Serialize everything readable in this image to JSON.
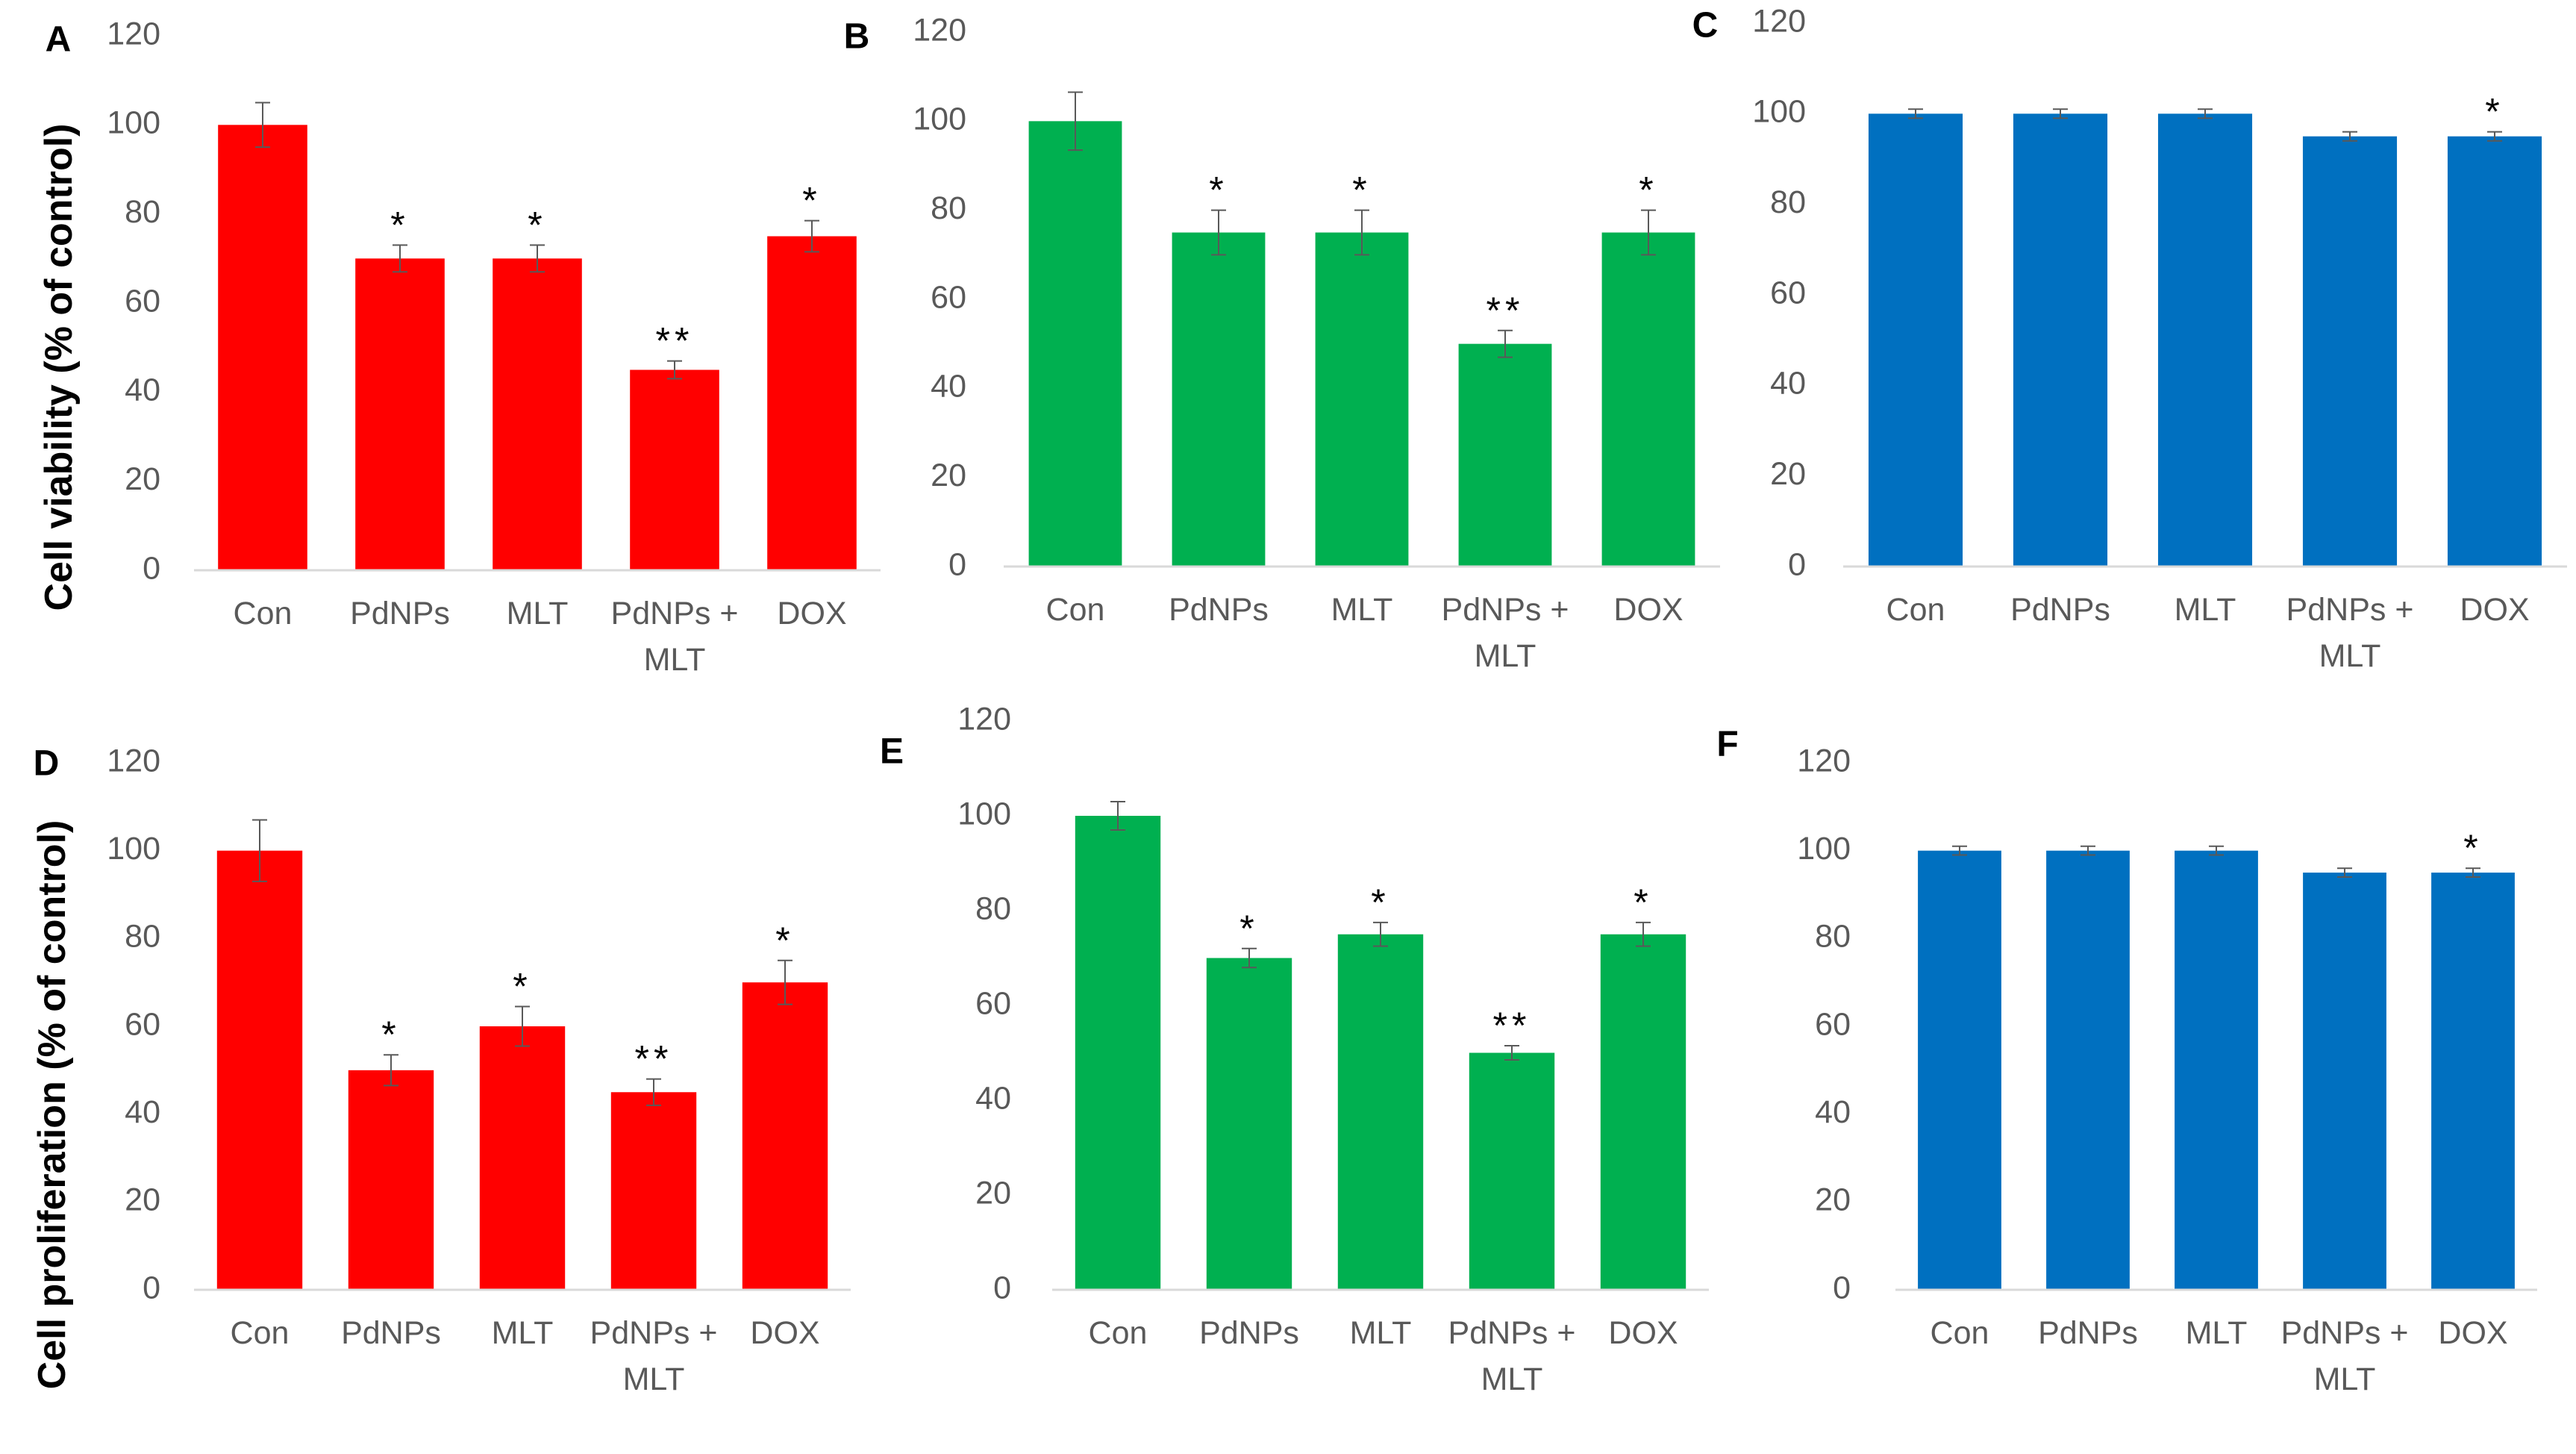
{
  "colors": {
    "red": "#ff0000",
    "green": "#00b050",
    "blue": "#0070c0",
    "axis": "#d9d9d9",
    "text": "#595959"
  },
  "y_axis_titles": {
    "top": "Cell viability (% of control)",
    "bottom": "Cell proliferation (% of control)"
  },
  "chart_data": [
    {
      "panel": "A",
      "type": "bar",
      "color": "red",
      "categories": [
        "Con",
        "PdNPs",
        "MLT",
        "PdNPs + MLT",
        "DOX"
      ],
      "values": [
        100,
        70,
        70,
        45,
        75
      ],
      "errors": [
        5,
        3,
        3,
        2,
        3.5
      ],
      "significance": [
        "",
        "*",
        "*",
        "**",
        "*"
      ],
      "ylim": [
        0,
        120
      ],
      "yticks": [
        0,
        20,
        40,
        60,
        80,
        100,
        120
      ],
      "ylabel": "Cell viability (% of control)"
    },
    {
      "panel": "B",
      "type": "bar",
      "color": "green",
      "categories": [
        "Con",
        "PdNPs",
        "MLT",
        "PdNPs + MLT",
        "DOX"
      ],
      "values": [
        100,
        75,
        75,
        50,
        75
      ],
      "errors": [
        6.5,
        5,
        5,
        3,
        5
      ],
      "significance": [
        "",
        "*",
        "*",
        "**",
        "*"
      ],
      "ylim": [
        0,
        120
      ],
      "yticks": [
        0,
        20,
        40,
        60,
        80,
        100,
        120
      ]
    },
    {
      "panel": "C",
      "type": "bar",
      "color": "blue",
      "categories": [
        "Con",
        "PdNPs",
        "MLT",
        "PdNPs + MLT",
        "DOX"
      ],
      "values": [
        100,
        100,
        100,
        95,
        95
      ],
      "errors": [
        1,
        1,
        1,
        1,
        1
      ],
      "significance": [
        "",
        "",
        "",
        "",
        "*"
      ],
      "ylim": [
        0,
        120
      ],
      "yticks": [
        0,
        20,
        40,
        60,
        80,
        100,
        120
      ]
    },
    {
      "panel": "D",
      "type": "bar",
      "color": "red",
      "categories": [
        "Con",
        "PdNPs",
        "MLT",
        "PdNPs + MLT",
        "DOX"
      ],
      "values": [
        100,
        50,
        60,
        45,
        70
      ],
      "errors": [
        7,
        3.5,
        4.5,
        3,
        5
      ],
      "significance": [
        "",
        "*",
        "*",
        "**",
        "*"
      ],
      "ylim": [
        0,
        120
      ],
      "yticks": [
        0,
        20,
        40,
        60,
        80,
        100,
        120
      ],
      "ylabel": "Cell proliferation (% of control)"
    },
    {
      "panel": "E",
      "type": "bar",
      "color": "green",
      "categories": [
        "Con",
        "PdNPs",
        "MLT",
        "PdNPs + MLT",
        "DOX"
      ],
      "values": [
        100,
        70,
        75,
        50,
        75
      ],
      "errors": [
        3,
        2,
        2.5,
        1.5,
        2.5
      ],
      "significance": [
        "",
        "*",
        "*",
        "**",
        "*"
      ],
      "ylim": [
        0,
        120
      ],
      "yticks": [
        0,
        20,
        40,
        60,
        80,
        100,
        120
      ]
    },
    {
      "panel": "F",
      "type": "bar",
      "color": "blue",
      "categories": [
        "Con",
        "PdNPs",
        "MLT",
        "PdNPs + MLT",
        "DOX"
      ],
      "values": [
        100,
        100,
        100,
        95,
        95
      ],
      "errors": [
        1,
        1,
        1,
        1,
        1
      ],
      "significance": [
        "",
        "",
        "",
        "",
        "*"
      ],
      "ylim": [
        0,
        120
      ],
      "yticks": [
        0,
        20,
        40,
        60,
        80,
        100,
        120
      ]
    }
  ]
}
